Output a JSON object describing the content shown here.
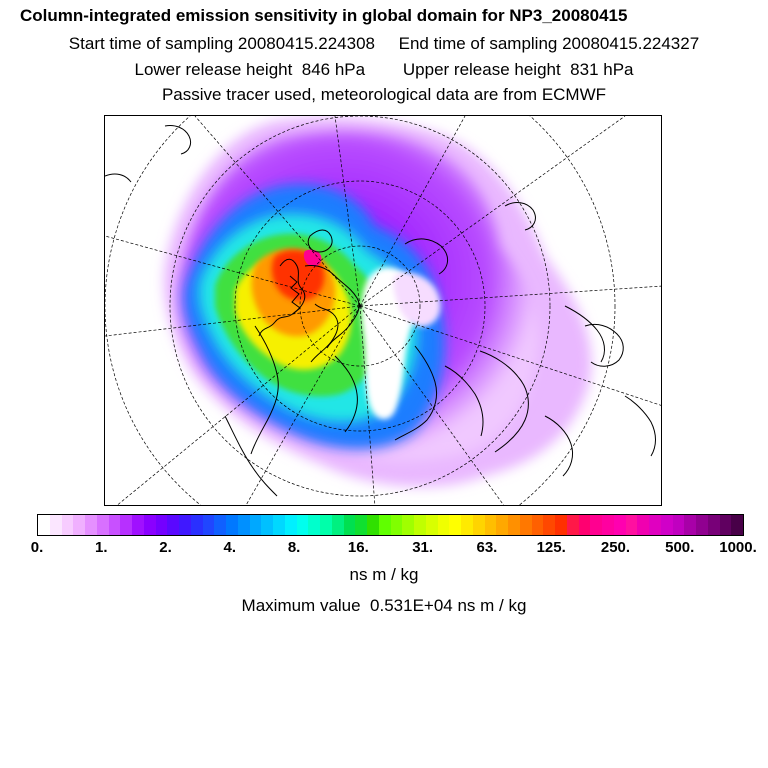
{
  "header": {
    "title": "Column-integrated emission sensitivity in global domain for NP3_20080415",
    "sampling_line": "Start time of sampling 20080415.224308     End time of sampling 20080415.224327",
    "release_line": "Lower release height  846 hPa        Upper release height  831 hPa",
    "tracer_line": "Passive tracer used, meteorological data are from ECMWF"
  },
  "map": {
    "projection": "polar stereographic (north pole)",
    "field": "column-integrated emission sensitivity"
  },
  "colorbar": {
    "tick_labels": [
      "0.",
      "1.",
      "2.",
      "4.",
      "8.",
      "16.",
      "31.",
      "63.",
      "125.",
      "250.",
      "500.",
      "1000."
    ],
    "colors": [
      "#ffffff",
      "#fbe6ff",
      "#f7ccff",
      "#f0b0ff",
      "#e590ff",
      "#d870ff",
      "#c850ff",
      "#b730ff",
      "#a010ff",
      "#8a00ff",
      "#7400ff",
      "#5a08ff",
      "#4018ff",
      "#2a30ff",
      "#2046ff",
      "#1060ff",
      "#0078ff",
      "#0090ff",
      "#00a8ff",
      "#00c0ff",
      "#00d8ff",
      "#00f0ff",
      "#00ffee",
      "#00ffcc",
      "#00ffaa",
      "#00f080",
      "#00e050",
      "#10e030",
      "#30e000",
      "#60ff00",
      "#80ff00",
      "#a0ff00",
      "#c0ff00",
      "#d8ff00",
      "#f0ff00",
      "#ffff00",
      "#ffea00",
      "#ffd400",
      "#ffbe00",
      "#ffa800",
      "#ff9000",
      "#ff7800",
      "#ff6000",
      "#ff4800",
      "#ff3000",
      "#ff1848",
      "#ff0070",
      "#ff0090",
      "#ff00a0",
      "#ff00b0",
      "#ff10a0",
      "#f000b0",
      "#e000c0",
      "#d000c8",
      "#c000c0",
      "#a800a8",
      "#900090",
      "#780078",
      "#600060",
      "#480048"
    ],
    "unit": "ns m / kg"
  },
  "max_value_text": "Maximum value  0.531E+04 ns m / kg"
}
